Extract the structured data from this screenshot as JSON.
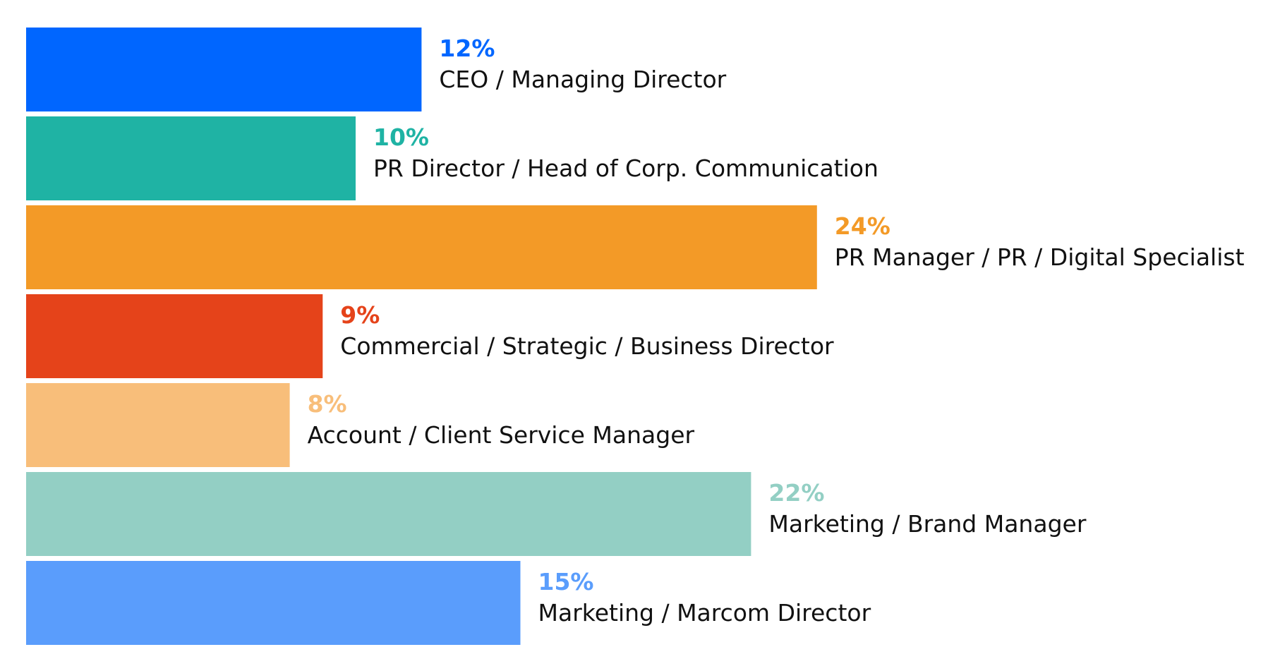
{
  "chart_data": {
    "type": "bar",
    "orientation": "horizontal",
    "grid": false,
    "xlim": [
      0,
      25
    ],
    "unit": "%",
    "categories": [
      "CEO / Managing Director",
      "PR Director / Head of Corp. Communication",
      "PR Manager / PR / Digital Specialist",
      "Commercial / Strategic / Business Director",
      "Account / Client Service Manager",
      "Marketing / Brand Manager",
      "Marketing / Marcom Director"
    ],
    "values": [
      12,
      10,
      24,
      9,
      8,
      22,
      15
    ],
    "value_labels": [
      "12%",
      "10%",
      "24%",
      "9%",
      "8%",
      "22%",
      "15%"
    ],
    "colors": [
      "#0066ff",
      "#1fb3a4",
      "#f39a27",
      "#e5431a",
      "#f8be7a",
      "#93cfc4",
      "#5a9dfc"
    ]
  }
}
